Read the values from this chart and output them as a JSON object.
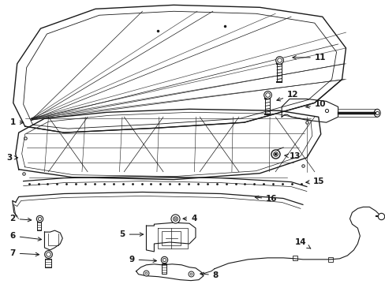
{
  "bg_color": "#ffffff",
  "line_color": "#1a1a1a",
  "fig_width": 4.89,
  "fig_height": 3.6,
  "dpi": 100,
  "text_fontsize": 7.5,
  "label_fontsize": 7.5
}
